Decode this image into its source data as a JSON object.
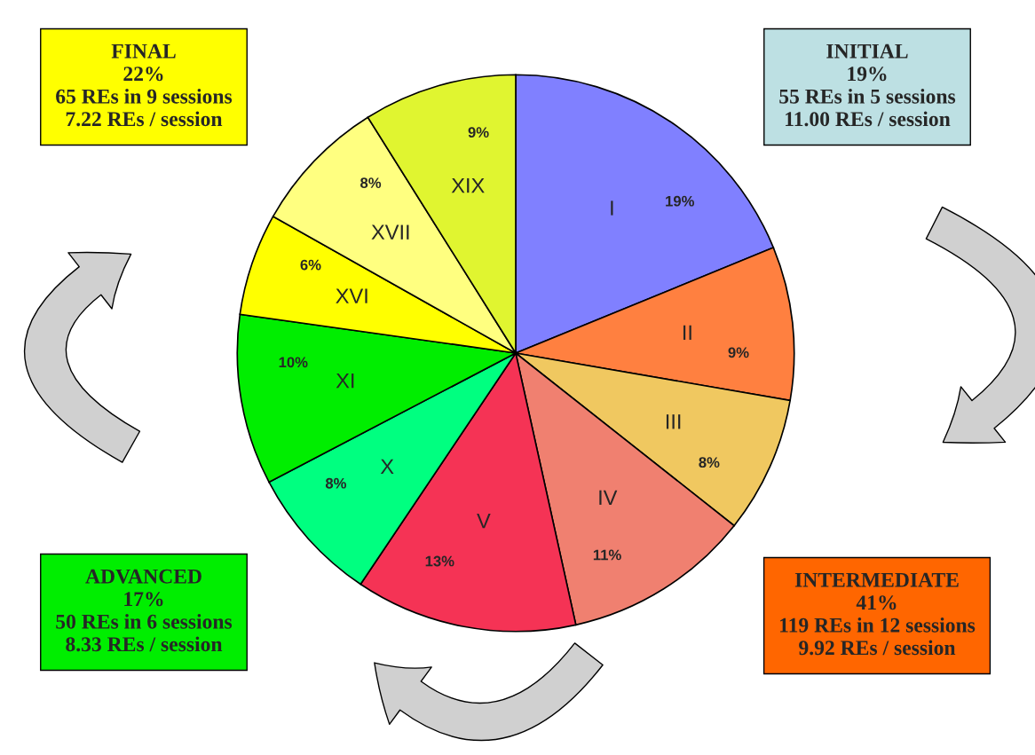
{
  "chart_data": {
    "type": "pie",
    "categories": [
      "I",
      "II",
      "III",
      "IV",
      "V",
      "X",
      "XI",
      "XVI",
      "XVII",
      "XIX"
    ],
    "values": [
      19,
      9,
      8,
      11,
      13,
      8,
      10,
      6,
      8,
      9
    ],
    "colors": [
      "#8080ff",
      "#ff8040",
      "#f0c860",
      "#f08070",
      "#f53355",
      "#00ff80",
      "#00ee00",
      "#ffff00",
      "#ffff80",
      "#e0f530"
    ],
    "value_labels": [
      "19%",
      "9%",
      "8%",
      "11%",
      "13%",
      "8%",
      "10%",
      "6%",
      "8%",
      "9%"
    ],
    "annotations": [
      "FINAL\n22%\n65 REs in 9 sessions\n7.22 REs / session",
      "INITIAL\n19%\n55 REs in 5 sessions\n11.00 REs / session",
      "ADVANCED\n17%\n50 REs in 6 sessions\n8.33 REs / session",
      "INTERMEDIATE\n41%\n119 REs in 12 sessions\n9.92 REs / session"
    ]
  }
}
